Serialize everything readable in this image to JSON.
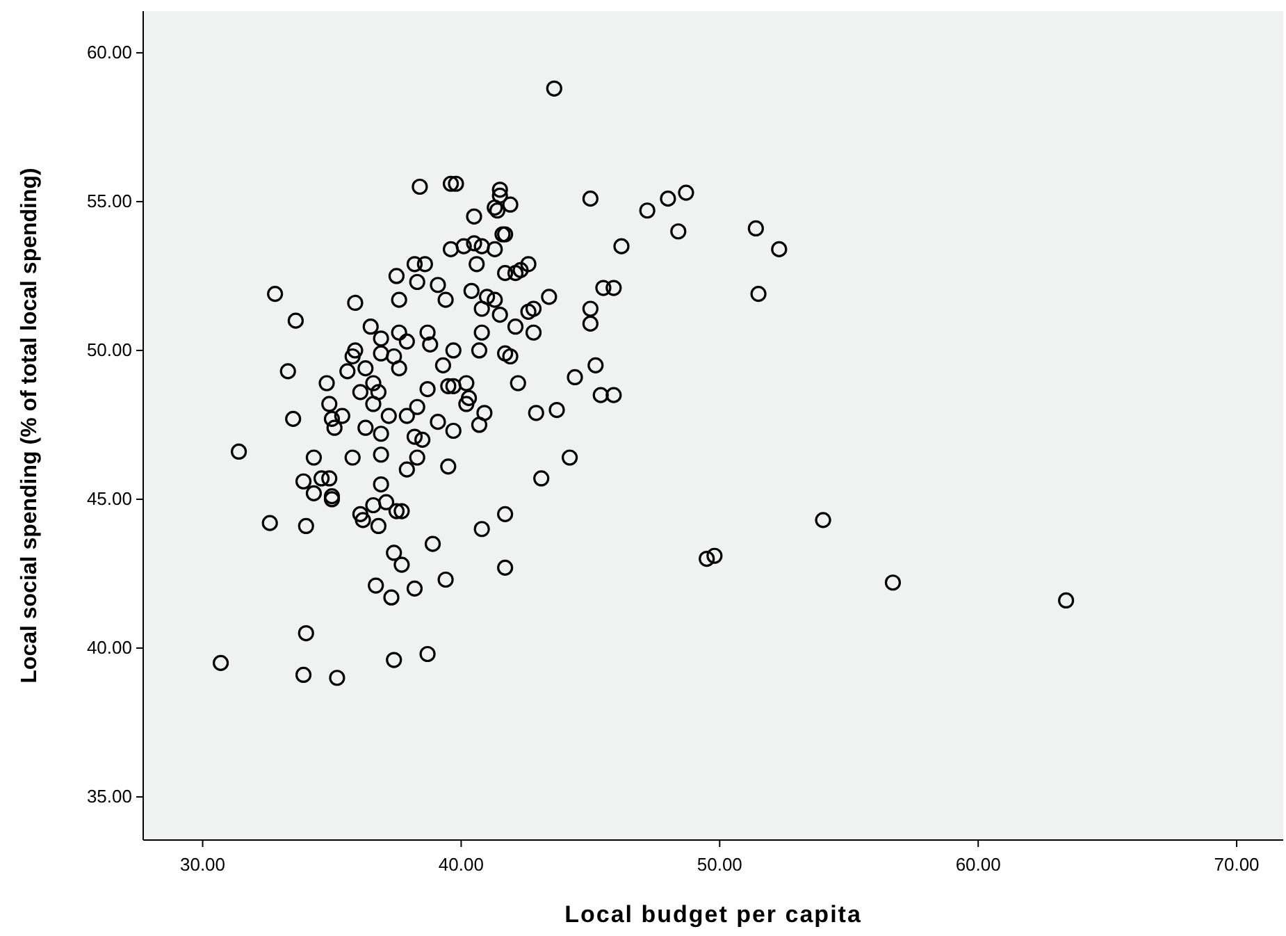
{
  "chart_data": {
    "type": "scatter",
    "xlabel": "Local budget per capita",
    "ylabel": "Local social spending (% of total local spending)",
    "xlim": [
      27.7,
      71.8
    ],
    "ylim": [
      33.55,
      61.4
    ],
    "xticks": [
      {
        "value": 30,
        "label": "30.00"
      },
      {
        "value": 40,
        "label": "40.00"
      },
      {
        "value": 50,
        "label": "50.00"
      },
      {
        "value": 60,
        "label": "60.00"
      },
      {
        "value": 70,
        "label": "70.00"
      }
    ],
    "yticks": [
      {
        "value": 35,
        "label": "35.00"
      },
      {
        "value": 40,
        "label": "40.00"
      },
      {
        "value": 45,
        "label": "45.00"
      },
      {
        "value": 50,
        "label": "50.00"
      },
      {
        "value": 55,
        "label": "55.00"
      },
      {
        "value": 60,
        "label": "60.00"
      }
    ],
    "marker": "circle",
    "series": [
      {
        "color": "#000000",
        "x": [
          43.6,
          39.8,
          39.6,
          38.4,
          41.5,
          41.5,
          41.3,
          41.4,
          41.9,
          45.0,
          47.2,
          48.0,
          48.7,
          48.4,
          51.4,
          52.3,
          51.5,
          46.2,
          40.5,
          41.7,
          41.6,
          39.6,
          40.1,
          40.5,
          40.8,
          41.3,
          40.6,
          38.2,
          38.6,
          42.6,
          42.3,
          42.1,
          41.7,
          37.5,
          38.3,
          39.1,
          32.8,
          40.4,
          39.4,
          41.0,
          41.3,
          37.6,
          35.9,
          43.4,
          45.5,
          45.9,
          45.0,
          40.8,
          41.5,
          42.6,
          42.8,
          33.6,
          42.1,
          45.0,
          36.5,
          37.6,
          38.7,
          40.8,
          42.8,
          36.9,
          37.9,
          38.8,
          39.7,
          35.9,
          35.8,
          40.7,
          41.7,
          41.9,
          36.9,
          37.4,
          33.3,
          35.6,
          36.3,
          37.6,
          39.3,
          40.2,
          42.2,
          44.4,
          45.2,
          34.8,
          36.6,
          36.8,
          36.1,
          38.7,
          39.5,
          39.7,
          45.4,
          45.9,
          34.9,
          36.6,
          38.3,
          40.3,
          40.2,
          33.5,
          35.0,
          35.4,
          37.2,
          37.9,
          40.9,
          42.9,
          43.7,
          35.1,
          36.3,
          36.9,
          38.2,
          38.5,
          39.7,
          39.1,
          40.7,
          31.4,
          34.3,
          35.8,
          36.9,
          38.3,
          44.2,
          37.9,
          39.5,
          33.9,
          34.6,
          34.9,
          36.9,
          43.1,
          34.3,
          35.0,
          35.0,
          36.6,
          37.1,
          37.5,
          37.7,
          36.1,
          36.2,
          32.6,
          34.0,
          36.8,
          41.7,
          40.8,
          54.0,
          49.5,
          49.8,
          37.4,
          37.7,
          41.7,
          38.9,
          56.7,
          36.7,
          38.2,
          39.4,
          37.3,
          63.4,
          34.0,
          30.7,
          33.9,
          35.2,
          37.4,
          38.7
        ],
        "values": [
          58.8,
          55.6,
          55.6,
          55.5,
          55.4,
          55.2,
          54.8,
          54.7,
          54.9,
          55.1,
          54.7,
          55.1,
          55.3,
          54.0,
          54.1,
          53.4,
          51.9,
          53.5,
          54.5,
          53.9,
          53.9,
          53.4,
          53.5,
          53.6,
          53.5,
          53.4,
          52.9,
          52.9,
          52.9,
          52.9,
          52.7,
          52.6,
          52.6,
          52.5,
          52.3,
          52.2,
          51.9,
          52.0,
          51.7,
          51.8,
          51.7,
          51.7,
          51.6,
          51.8,
          52.1,
          52.1,
          51.4,
          51.4,
          51.2,
          51.3,
          51.4,
          51.0,
          50.8,
          50.9,
          50.8,
          50.6,
          50.6,
          50.6,
          50.6,
          50.4,
          50.3,
          50.2,
          50.0,
          50.0,
          49.8,
          50.0,
          49.9,
          49.8,
          49.9,
          49.8,
          49.3,
          49.3,
          49.4,
          49.4,
          49.5,
          48.9,
          48.9,
          49.1,
          49.5,
          48.9,
          48.9,
          48.6,
          48.6,
          48.7,
          48.8,
          48.8,
          48.5,
          48.5,
          48.2,
          48.2,
          48.1,
          48.4,
          48.2,
          47.7,
          47.7,
          47.8,
          47.8,
          47.8,
          47.9,
          47.9,
          48.0,
          47.4,
          47.4,
          47.2,
          47.1,
          47.0,
          47.3,
          47.6,
          47.5,
          46.6,
          46.4,
          46.4,
          46.5,
          46.4,
          46.4,
          46.0,
          46.1,
          45.6,
          45.7,
          45.7,
          45.5,
          45.7,
          45.2,
          45.1,
          45.0,
          44.8,
          44.9,
          44.6,
          44.6,
          44.5,
          44.3,
          44.2,
          44.1,
          44.1,
          44.5,
          44.0,
          44.3,
          43.0,
          43.1,
          43.2,
          42.8,
          42.7,
          43.5,
          42.2,
          42.1,
          42.0,
          42.3,
          41.7,
          41.6,
          40.5,
          39.5,
          39.1,
          39.0,
          39.6,
          39.8
        ]
      }
    ]
  }
}
